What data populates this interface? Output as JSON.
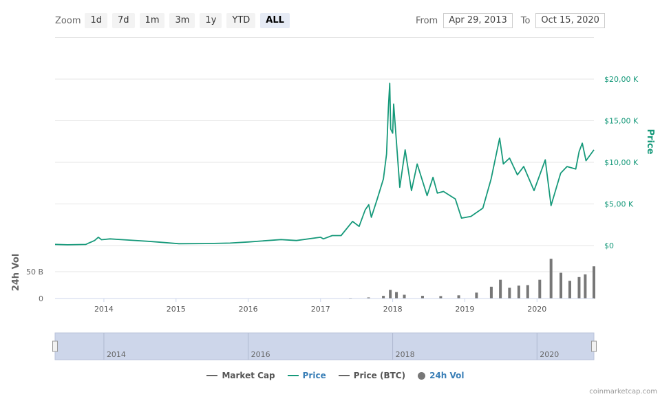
{
  "toolbar": {
    "zoom_label": "Zoom",
    "zoom_buttons": [
      "1d",
      "7d",
      "1m",
      "3m",
      "1y",
      "YTD",
      "ALL"
    ],
    "active_zoom": "ALL",
    "from_label": "From",
    "from_value": "Apr 29, 2013",
    "to_label": "To",
    "to_value": "Oct 15, 2020"
  },
  "legend": [
    {
      "label": "Market Cap",
      "color": "#666666",
      "shape": "line"
    },
    {
      "label": "Price",
      "color": "#16997a",
      "shape": "line"
    },
    {
      "label": "Price (BTC)",
      "color": "#666666",
      "shape": "line"
    },
    {
      "label": "24h Vol",
      "color": "#666666",
      "shape": "dot"
    }
  ],
  "credit": "coinmarketcap.com",
  "colors": {
    "price": "#16997a",
    "volume": "#777777",
    "navigator_fill": "#cdd6ea",
    "grid": "#e6e6e6"
  },
  "chart_data": [
    {
      "type": "line",
      "series": [
        {
          "name": "Price",
          "color": "#16997a"
        }
      ],
      "ylabel": "Price",
      "ylim": [
        0,
        20000
      ],
      "y_ticks": [
        0,
        5000,
        10000,
        15000,
        20000
      ],
      "y_tick_labels": [
        "$0",
        "$5,00 K",
        "$10,00 K",
        "$15,00 K",
        "$20,00 K"
      ],
      "xlim": [
        "2013-04-29",
        "2020-10-15"
      ],
      "x": [
        "2013-04-29",
        "2013-07-01",
        "2013-10-01",
        "2013-11-15",
        "2013-12-04",
        "2013-12-20",
        "2014-02-01",
        "2014-06-01",
        "2014-09-01",
        "2015-01-15",
        "2015-06-01",
        "2015-10-01",
        "2016-01-01",
        "2016-06-15",
        "2016-09-01",
        "2017-01-01",
        "2017-01-15",
        "2017-03-01",
        "2017-04-15",
        "2017-06-12",
        "2017-07-15",
        "2017-08-15",
        "2017-09-02",
        "2017-09-15",
        "2017-10-15",
        "2017-11-15",
        "2017-12-01",
        "2017-12-10",
        "2017-12-17",
        "2017-12-22",
        "2018-01-01",
        "2018-01-06",
        "2018-02-06",
        "2018-03-05",
        "2018-04-06",
        "2018-05-05",
        "2018-06-24",
        "2018-07-24",
        "2018-08-15",
        "2018-09-15",
        "2018-11-14",
        "2018-12-15",
        "2019-02-01",
        "2019-04-02",
        "2019-05-14",
        "2019-06-26",
        "2019-07-15",
        "2019-08-15",
        "2019-09-24",
        "2019-10-26",
        "2019-12-17",
        "2020-02-12",
        "2020-03-12",
        "2020-04-30",
        "2020-06-01",
        "2020-07-15",
        "2020-08-01",
        "2020-08-17",
        "2020-09-05",
        "2020-10-15"
      ],
      "y": [
        140,
        90,
        130,
        600,
        1000,
        700,
        800,
        620,
        480,
        220,
        240,
        300,
        430,
        720,
        600,
        1000,
        800,
        1200,
        1200,
        2900,
        2300,
        4300,
        4900,
        3400,
        5600,
        8000,
        11000,
        16500,
        19500,
        14000,
        13500,
        17000,
        7000,
        11500,
        6600,
        9800,
        6000,
        8200,
        6300,
        6500,
        5600,
        3300,
        3500,
        4500,
        8000,
        12900,
        9800,
        10500,
        8500,
        9500,
        6600,
        10300,
        4800,
        8700,
        9500,
        9200,
        11300,
        12300,
        10200,
        11500
      ]
    },
    {
      "type": "bar",
      "series": [
        {
          "name": "24h Vol",
          "color": "#777777"
        }
      ],
      "ylabel": "24h Vol",
      "ylim": [
        0,
        100000000000
      ],
      "y_ticks": [
        0,
        50000000000
      ],
      "y_tick_labels": [
        "0",
        "50 B"
      ],
      "x": [
        "2017-06-01",
        "2017-09-01",
        "2017-11-15",
        "2017-12-20",
        "2018-01-20",
        "2018-03-01",
        "2018-06-01",
        "2018-09-01",
        "2018-12-01",
        "2019-03-01",
        "2019-05-15",
        "2019-06-30",
        "2019-08-15",
        "2019-10-01",
        "2019-11-15",
        "2020-01-15",
        "2020-03-12",
        "2020-05-01",
        "2020-06-15",
        "2020-08-01",
        "2020-09-01",
        "2020-10-15"
      ],
      "values": [
        1000000000,
        2000000000,
        5000000000,
        16000000000,
        12000000000,
        7000000000,
        5000000000,
        4500000000,
        6000000000,
        11000000000,
        22000000000,
        35000000000,
        20000000000,
        24000000000,
        25000000000,
        35000000000,
        74000000000,
        48000000000,
        33000000000,
        40000000000,
        45000000000,
        60000000000
      ]
    }
  ],
  "x_axis_labels": [
    "2014",
    "2015",
    "2016",
    "2017",
    "2018",
    "2019",
    "2020"
  ],
  "navigator": {
    "labels": [
      "2014",
      "2016",
      "2018",
      "2020"
    ]
  }
}
